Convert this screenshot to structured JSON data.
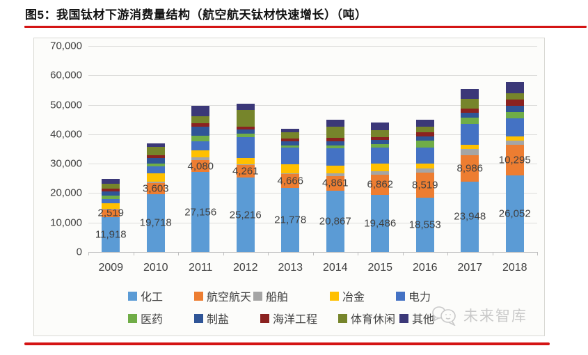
{
  "page": {
    "title": "图5：我国钛材下游消费量结构（航空航天钛材快速增长）（吨）",
    "watermark_text": "未来智库",
    "accent_red": "#d41414",
    "watermark_icon": "chat-bubbles-logo-icon"
  },
  "chart_data": {
    "type": "bar",
    "stacked": true,
    "title": "我国钛材下游消费量结构（吨）",
    "unit": "吨",
    "grid": true,
    "legend_position": "bottom",
    "ylim": [
      0,
      70000
    ],
    "ytick_interval": 10000,
    "ytick_labels": [
      "0",
      "10,000",
      "20,000",
      "30,000",
      "40,000",
      "50,000",
      "60,000",
      "70,000"
    ],
    "categories": [
      "2009",
      "2010",
      "2011",
      "2012",
      "2013",
      "2014",
      "2015",
      "2016",
      "2017",
      "2018"
    ],
    "series": [
      {
        "name": "化工",
        "color": "#5b9bd5",
        "show_labels": true,
        "values": [
          11918,
          19718,
          27156,
          25216,
          21778,
          20867,
          19486,
          18553,
          23948,
          26052
        ]
      },
      {
        "name": "航空航天",
        "color": "#ed7d31",
        "show_labels": true,
        "values": [
          2519,
          3603,
          4080,
          4261,
          4666,
          4861,
          6862,
          8519,
          8986,
          10295
        ]
      },
      {
        "name": "船舶",
        "color": "#a5a5a5",
        "show_labels": false,
        "values": [
          250,
          500,
          950,
          250,
          250,
          950,
          1200,
          1200,
          2000,
          1400
        ]
      },
      {
        "name": "冶金",
        "color": "#ffc000",
        "show_labels": false,
        "values": [
          1800,
          2900,
          2400,
          2150,
          3100,
          2600,
          2400,
          1670,
          1400,
          1400
        ]
      },
      {
        "name": "电力",
        "color": "#4472c4",
        "show_labels": false,
        "values": [
          1600,
          2300,
          3100,
          7200,
          5700,
          6000,
          5500,
          5500,
          7200,
          6200
        ]
      },
      {
        "name": "医药",
        "color": "#70ad47",
        "show_labels": false,
        "values": [
          1100,
          1100,
          1900,
          1200,
          720,
          950,
          1200,
          2400,
          2100,
          2100
        ]
      },
      {
        "name": "制盐",
        "color": "#2f5597",
        "show_labels": false,
        "values": [
          1400,
          1900,
          2900,
          1450,
          1450,
          1450,
          1450,
          1450,
          1600,
          2300
        ]
      },
      {
        "name": "海洋工程",
        "color": "#8b2220",
        "show_labels": false,
        "values": [
          900,
          900,
          1200,
          950,
          950,
          1200,
          950,
          1450,
          1600,
          2100
        ]
      },
      {
        "name": "体育休闲",
        "color": "#76852b",
        "show_labels": false,
        "values": [
          1800,
          2700,
          2400,
          5500,
          2150,
          3600,
          2400,
          1900,
          3300,
          2100
        ]
      },
      {
        "name": "其他",
        "color": "#3b3878",
        "show_labels": false,
        "values": [
          1500,
          1300,
          3600,
          2150,
          1200,
          2400,
          2600,
          2400,
          3100,
          3700
        ]
      }
    ],
    "legend_rows": [
      [
        "化工",
        "航空航天",
        "船舶",
        "冶金",
        "电力"
      ],
      [
        "医药",
        "制盐",
        "海洋工程",
        "体育休闲",
        "其他"
      ]
    ]
  }
}
